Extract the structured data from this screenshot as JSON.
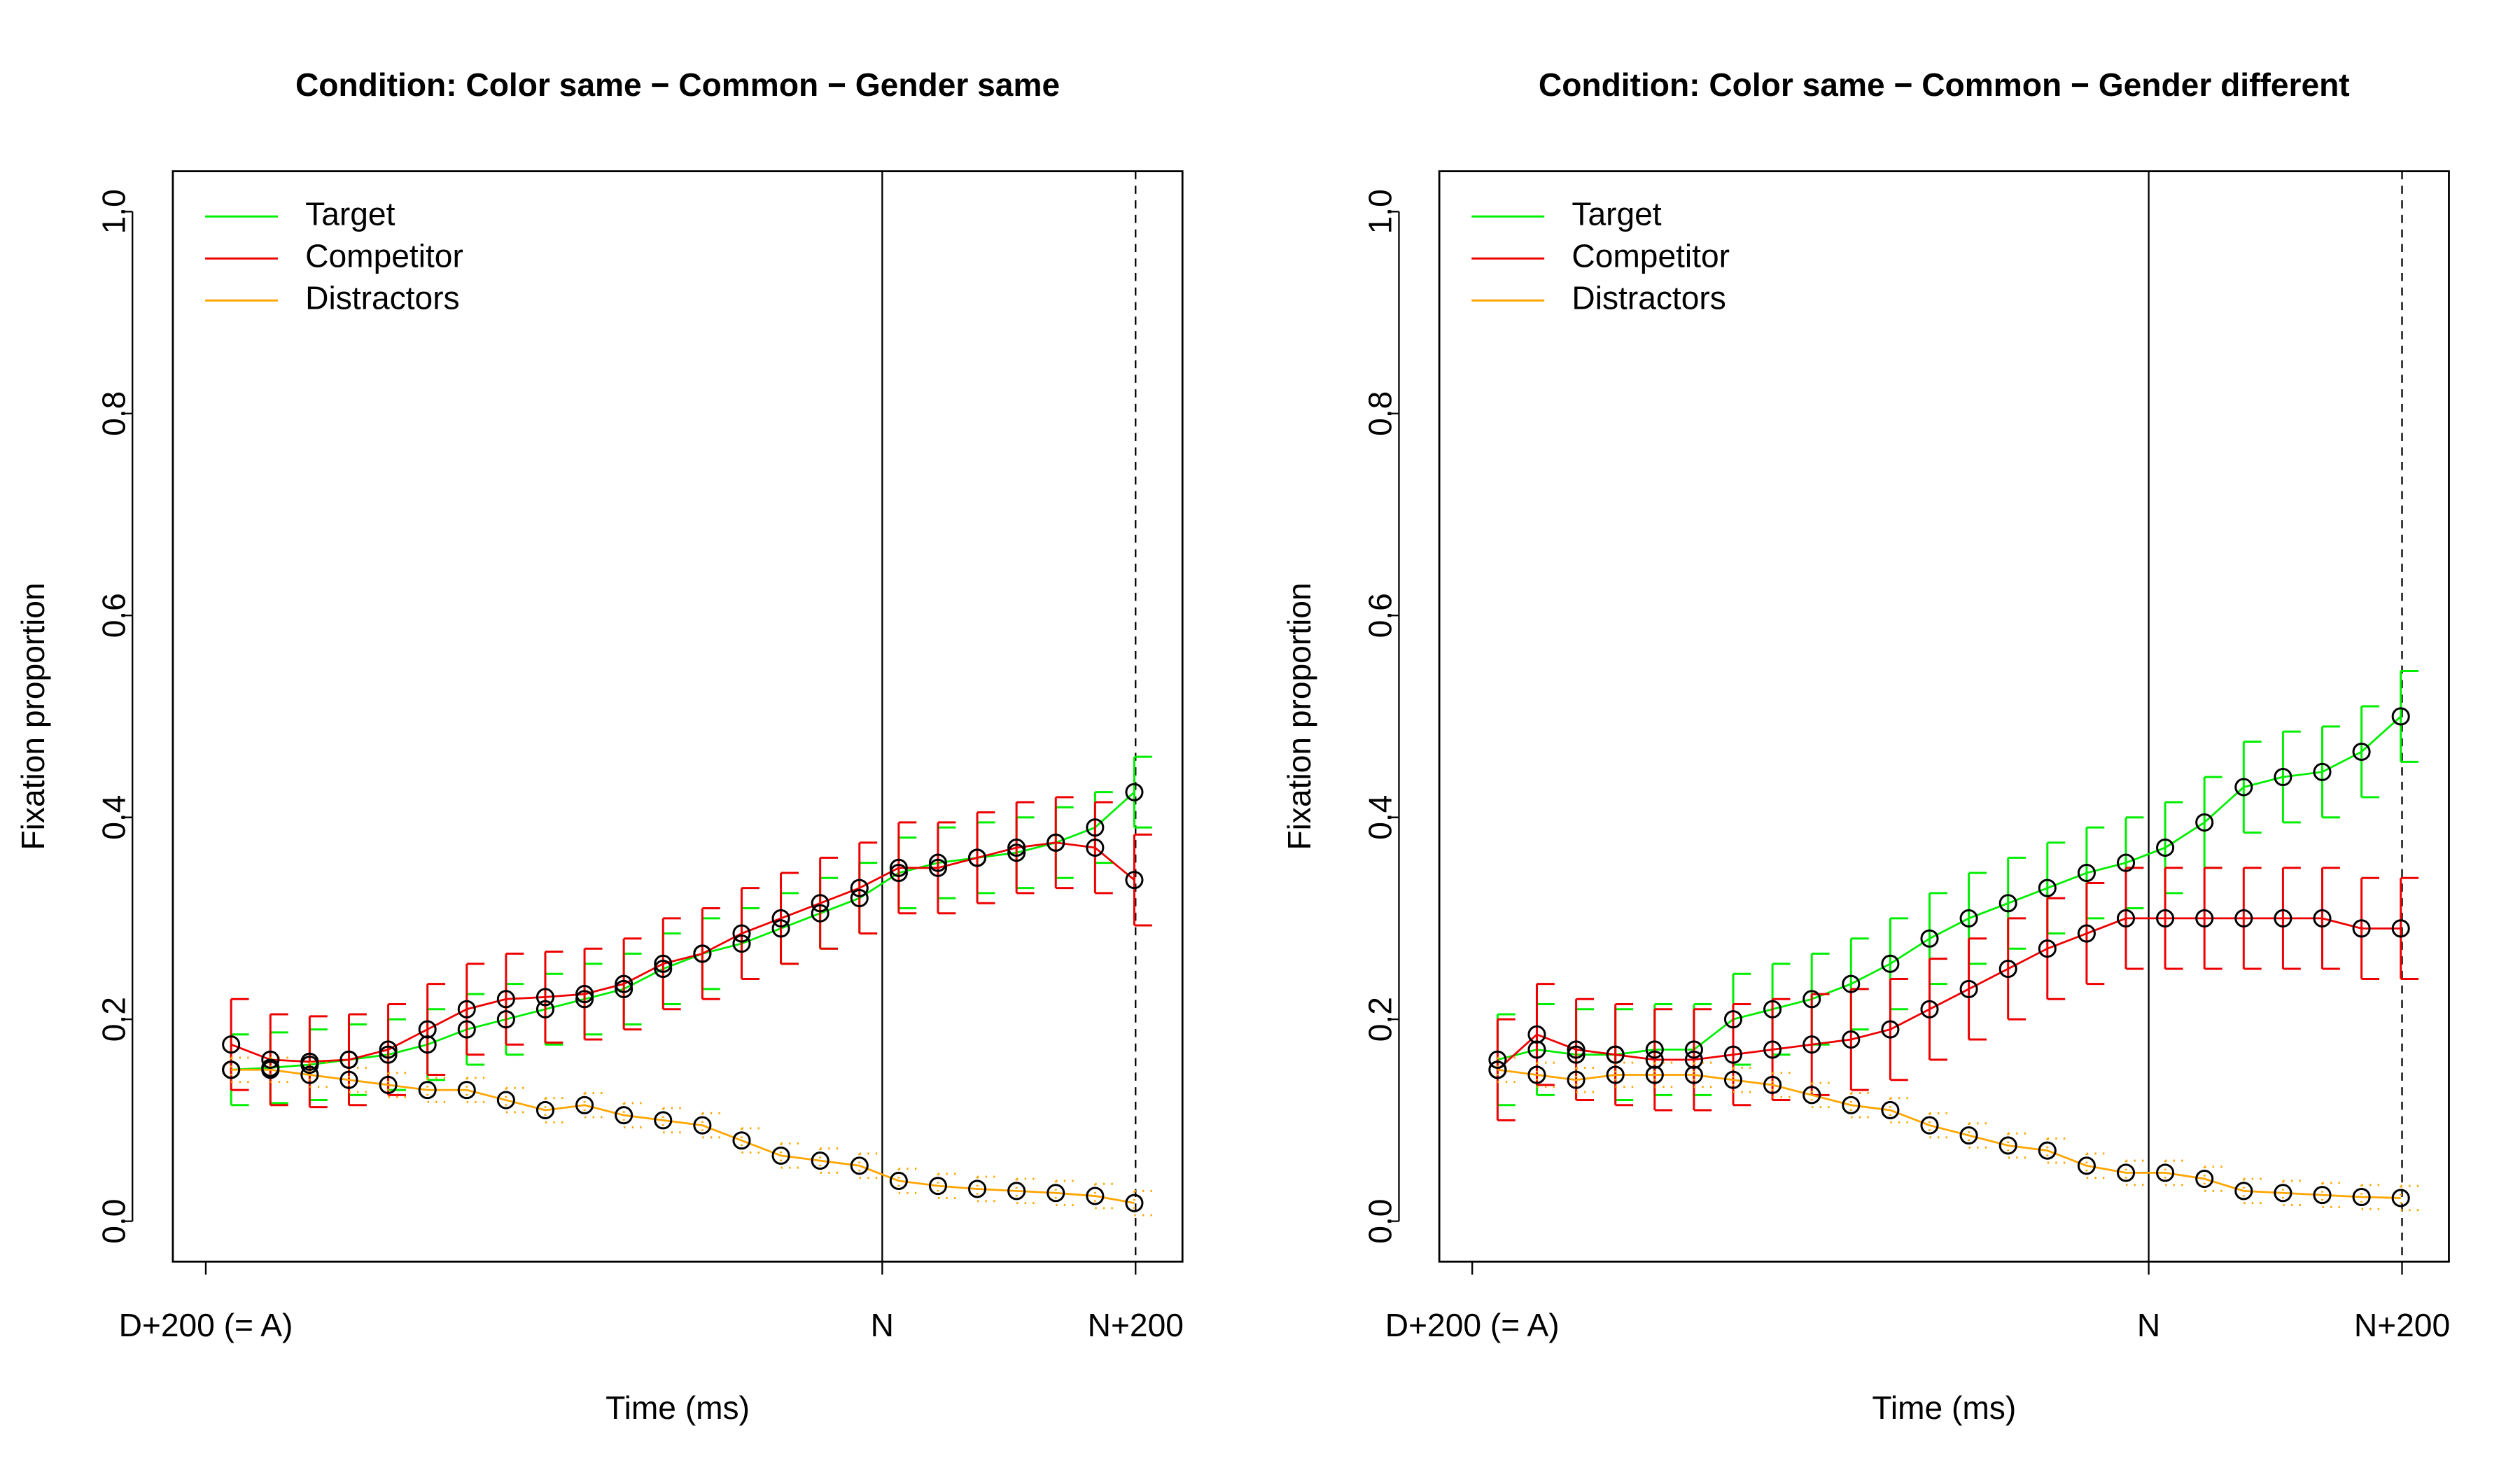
{
  "chart_data": [
    {
      "type": "line",
      "title": "Condition: Color same − Common − Gender same",
      "xlabel": "Time (ms)",
      "ylabel": "Fixation proportion",
      "x": [
        20,
        51,
        82,
        113,
        144,
        175,
        206,
        237,
        268,
        299,
        330,
        361,
        392,
        423,
        454,
        485,
        516,
        547,
        578,
        609,
        640,
        671,
        702,
        733
      ],
      "xlim": [
        -26,
        771
      ],
      "xticks": [
        {
          "value": 0,
          "label": "D+200 (= A)"
        },
        {
          "value": 534,
          "label": "N"
        },
        {
          "value": 734,
          "label": "N+200"
        }
      ],
      "ylim": [
        -0.04,
        1.04
      ],
      "yticks": [
        {
          "value": 0,
          "label": "0.0"
        },
        0.2,
        0.4,
        0.6,
        0.8,
        {
          "value": 1,
          "label": "1.0"
        }
      ],
      "legend": "topleft",
      "series": [
        {
          "name": "Target",
          "color": "#00ee00",
          "error": 0.035,
          "values": [
            0.15,
            0.152,
            0.155,
            0.16,
            0.165,
            0.175,
            0.19,
            0.2,
            0.21,
            0.22,
            0.23,
            0.25,
            0.265,
            0.275,
            0.29,
            0.305,
            0.32,
            0.345,
            0.355,
            0.36,
            0.365,
            0.375,
            0.39,
            0.425
          ]
        },
        {
          "name": "Competitor",
          "color": "#ee0000",
          "error": 0.045,
          "values": [
            0.175,
            0.16,
            0.158,
            0.16,
            0.17,
            0.19,
            0.21,
            0.22,
            0.222,
            0.225,
            0.235,
            0.255,
            0.265,
            0.285,
            0.3,
            0.315,
            0.33,
            0.35,
            0.35,
            0.36,
            0.37,
            0.375,
            0.37,
            0.338
          ]
        },
        {
          "name": "Distractors",
          "color": "#ffa500",
          "error": 0.012,
          "values": [
            0.15,
            0.15,
            0.145,
            0.14,
            0.135,
            0.13,
            0.13,
            0.12,
            0.11,
            0.115,
            0.105,
            0.1,
            0.095,
            0.08,
            0.065,
            0.06,
            0.055,
            0.04,
            0.035,
            0.032,
            0.03,
            0.028,
            0.025,
            0.018
          ]
        }
      ]
    },
    {
      "type": "line",
      "title": "Condition: Color same − Common − Gender different",
      "xlabel": "Time (ms)",
      "ylabel": "Fixation proportion",
      "x": [
        20,
        51,
        82,
        113,
        144,
        175,
        206,
        237,
        268,
        299,
        330,
        361,
        392,
        423,
        454,
        485,
        516,
        547,
        578,
        609,
        640,
        671,
        702,
        733
      ],
      "xlim": [
        -26,
        771
      ],
      "xticks": [
        {
          "value": 0,
          "label": "D+200 (= A)"
        },
        {
          "value": 534,
          "label": "N"
        },
        {
          "value": 734,
          "label": "N+200"
        }
      ],
      "ylim": [
        -0.04,
        1.04
      ],
      "yticks": [
        {
          "value": 0,
          "label": "0.0"
        },
        0.2,
        0.4,
        0.6,
        0.8,
        {
          "value": 1,
          "label": "1.0"
        }
      ],
      "legend": "topleft",
      "series": [
        {
          "name": "Target",
          "color": "#00ee00",
          "error": 0.045,
          "values": [
            0.16,
            0.17,
            0.165,
            0.165,
            0.17,
            0.17,
            0.2,
            0.21,
            0.22,
            0.235,
            0.255,
            0.28,
            0.3,
            0.315,
            0.33,
            0.345,
            0.355,
            0.37,
            0.395,
            0.43,
            0.44,
            0.445,
            0.465,
            0.5
          ]
        },
        {
          "name": "Competitor",
          "color": "#ee0000",
          "error": 0.05,
          "values": [
            0.15,
            0.185,
            0.17,
            0.165,
            0.16,
            0.16,
            0.165,
            0.17,
            0.175,
            0.18,
            0.19,
            0.21,
            0.23,
            0.25,
            0.27,
            0.285,
            0.3,
            0.3,
            0.3,
            0.3,
            0.3,
            0.3,
            0.29,
            0.29
          ]
        },
        {
          "name": "Distractors",
          "color": "#ffa500",
          "error": 0.012,
          "values": [
            0.15,
            0.145,
            0.14,
            0.145,
            0.145,
            0.145,
            0.14,
            0.135,
            0.125,
            0.115,
            0.11,
            0.095,
            0.085,
            0.075,
            0.07,
            0.055,
            0.048,
            0.048,
            0.042,
            0.03,
            0.028,
            0.026,
            0.024,
            0.023
          ]
        }
      ]
    }
  ]
}
